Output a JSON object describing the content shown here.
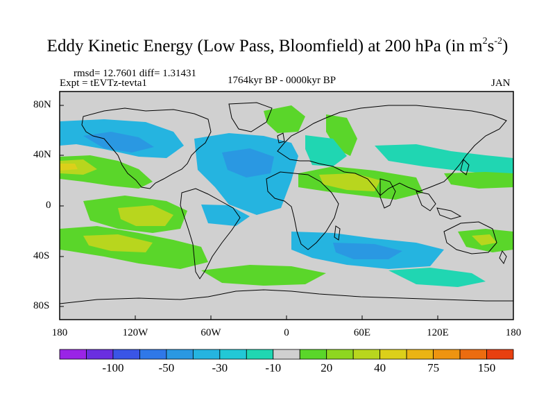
{
  "header": {
    "title_main": "Eddy Kinetic Energy (Low Pass, Bloomfield) at 200 hPa (in m",
    "title_sup1": "2",
    "title_mid": "s",
    "title_sup2": "-2",
    "title_end": ")",
    "stats": "rmsd= 12.7601 diff= 1.31431",
    "expt": "Expt = tEVTz-tevta1",
    "period": "1764kyr BP - 0000kyr BP",
    "month": "JAN"
  },
  "axes": {
    "y_ticks": [
      "80N",
      "40N",
      "0",
      "40S",
      "80S"
    ],
    "x_ticks": [
      "180",
      "120W",
      "60W",
      "0",
      "60E",
      "120E",
      "180"
    ]
  },
  "colorbar": {
    "colors": [
      "#9a24e6",
      "#6a2fe0",
      "#3a55e6",
      "#2f78e8",
      "#2a98e2",
      "#25b4e0",
      "#22c8d6",
      "#20d6b2",
      "#d0d0d0",
      "#5ad62a",
      "#8ed620",
      "#b8d61e",
      "#dcd01a",
      "#eab414",
      "#ee9410",
      "#ec6c10",
      "#e84010"
    ],
    "labels": [
      "-100",
      "-50",
      "-30",
      "-10",
      "20",
      "40",
      "75",
      "150"
    ]
  },
  "map_fields": {
    "land_color": "#d0d0d0",
    "ocean_default": "#d0d0d0"
  }
}
